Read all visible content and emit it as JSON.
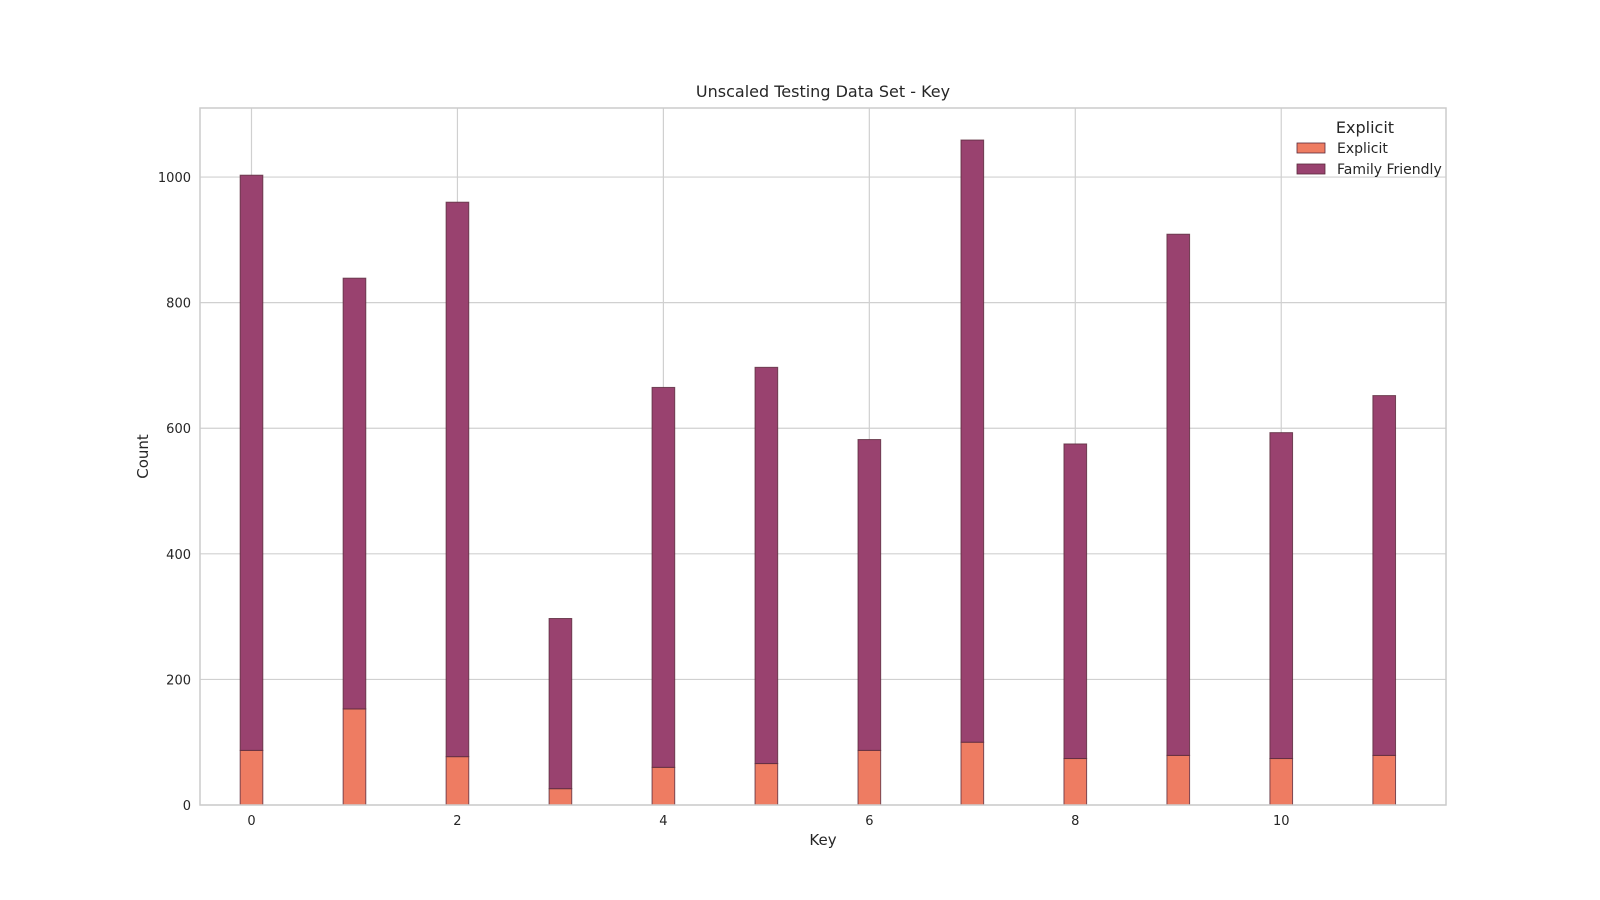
{
  "chart_data": {
    "type": "bar",
    "title": "Unscaled Testing Data Set - Key",
    "xlabel": "Key",
    "ylabel": "Count",
    "x": [
      0,
      1,
      2,
      3,
      4,
      5,
      6,
      7,
      8,
      9,
      10,
      11
    ],
    "x_ticks": [
      0,
      2,
      4,
      6,
      8,
      10
    ],
    "y_ticks": [
      0,
      200,
      400,
      600,
      800,
      1000
    ],
    "xlim": [
      -0.5,
      11.6
    ],
    "ylim": [
      0,
      1110
    ],
    "stacked": true,
    "grid": true,
    "legend": {
      "title": "Explicit",
      "placement": "top-right"
    },
    "series": [
      {
        "name": "Explicit",
        "color": "#ee7c62",
        "values": [
          87,
          153,
          77,
          26,
          60,
          66,
          87,
          100,
          74,
          79,
          74,
          79
        ]
      },
      {
        "name": "Family Friendly",
        "color": "#99426f",
        "values": [
          916,
          686,
          883,
          271,
          605,
          631,
          495,
          959,
          501,
          830,
          519,
          573
        ]
      }
    ]
  }
}
